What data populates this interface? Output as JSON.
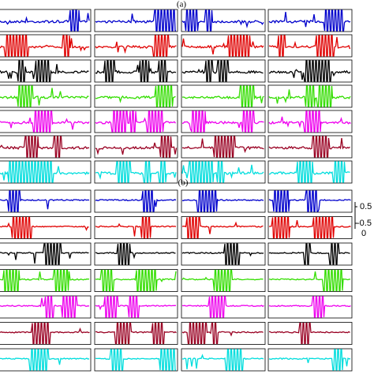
{
  "panels": [
    {
      "label": "(a)"
    },
    {
      "label": "(b)"
    }
  ],
  "scale_axis": {
    "ticks": [
      "0.5",
      "-0.5",
      "0"
    ]
  }
}
